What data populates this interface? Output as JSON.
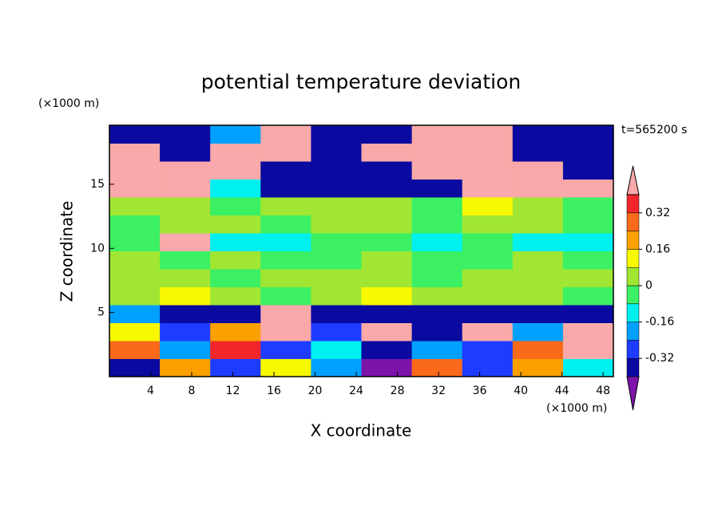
{
  "chart_data": {
    "type": "contour",
    "title": "potential temperature deviation",
    "xlabel": "X coordinate",
    "ylabel": "Z coordinate",
    "x_unit": "(×1000 m)",
    "y_unit": "(×1000 m)",
    "time_label": "t=565200 s",
    "xlim": [
      0,
      49
    ],
    "ylim": [
      0,
      19.6
    ],
    "xticks": [
      4,
      8,
      12,
      16,
      20,
      24,
      28,
      32,
      36,
      40,
      44,
      48
    ],
    "yticks": [
      5,
      10,
      15
    ],
    "x_edges": [
      0,
      4.9,
      9.8,
      14.7,
      19.6,
      24.5,
      29.4,
      34.3,
      39.2,
      44.1,
      49
    ],
    "y_edges": [
      0,
      1.4,
      2.8,
      4.2,
      5.6,
      7,
      8.4,
      9.8,
      11.2,
      12.6,
      14,
      15.4,
      16.8,
      18.2,
      19.6
    ],
    "field": [
      [
        -0.36,
        0.2,
        -0.3,
        0.1,
        -0.2,
        -0.5,
        0.3,
        -0.3,
        0.2,
        -0.1
      ],
      [
        0.3,
        -0.2,
        0.36,
        -0.3,
        -0.1,
        -0.36,
        -0.2,
        -0.3,
        0.3,
        0.5
      ],
      [
        0.1,
        -0.3,
        0.2,
        0.5,
        -0.3,
        0.5,
        -0.36,
        0.5,
        -0.2,
        0.5
      ],
      [
        -0.2,
        -0.36,
        -0.36,
        0.5,
        -0.36,
        -0.36,
        -0.36,
        -0.36,
        -0.36,
        -0.36
      ],
      [
        0.04,
        0.1,
        0.04,
        -0.04,
        0.04,
        0.1,
        0.04,
        0.04,
        0.04,
        -0.04
      ],
      [
        0.04,
        0.04,
        -0.04,
        0.04,
        0.04,
        0.04,
        -0.04,
        0.04,
        0.04,
        0.04
      ],
      [
        0.04,
        -0.04,
        0.04,
        -0.04,
        -0.04,
        0.04,
        -0.04,
        -0.04,
        0.04,
        -0.04
      ],
      [
        -0.04,
        0.5,
        -0.12,
        -0.12,
        -0.04,
        -0.04,
        -0.12,
        -0.04,
        -0.12,
        -0.12
      ],
      [
        -0.04,
        0.04,
        0.04,
        -0.04,
        0.04,
        0.04,
        -0.04,
        0.04,
        0.04,
        -0.04
      ],
      [
        0.04,
        0.04,
        -0.04,
        0.04,
        0.04,
        0.04,
        -0.04,
        0.1,
        0.04,
        -0.04
      ],
      [
        0.5,
        0.5,
        -0.12,
        -0.36,
        -0.36,
        -0.36,
        -0.36,
        0.5,
        0.5,
        0.5
      ],
      [
        0.5,
        0.5,
        0.5,
        -0.36,
        -0.36,
        -0.36,
        0.5,
        0.5,
        0.5,
        -0.36
      ],
      [
        0.5,
        -0.36,
        0.5,
        0.5,
        -0.36,
        0.5,
        0.5,
        0.5,
        -0.36,
        -0.36
      ],
      [
        -0.36,
        -0.36,
        -0.2,
        0.5,
        -0.36,
        -0.36,
        0.5,
        0.5,
        -0.36,
        -0.36
      ]
    ],
    "levels": [
      -0.4,
      -0.32,
      -0.24,
      -0.16,
      -0.08,
      0,
      0.08,
      0.16,
      0.24,
      0.32,
      0.4
    ],
    "colors": [
      "#7d14aa",
      "#0a0aa0",
      "#1e3cff",
      "#00a0ff",
      "#00f0f0",
      "#3cf064",
      "#a0e632",
      "#f8f800",
      "#fca000",
      "#fa6a1a",
      "#f0262a",
      "#f9a9a9"
    ],
    "colorbar_ticks": [
      -0.32,
      -0.16,
      0,
      0.16,
      0.32
    ]
  }
}
